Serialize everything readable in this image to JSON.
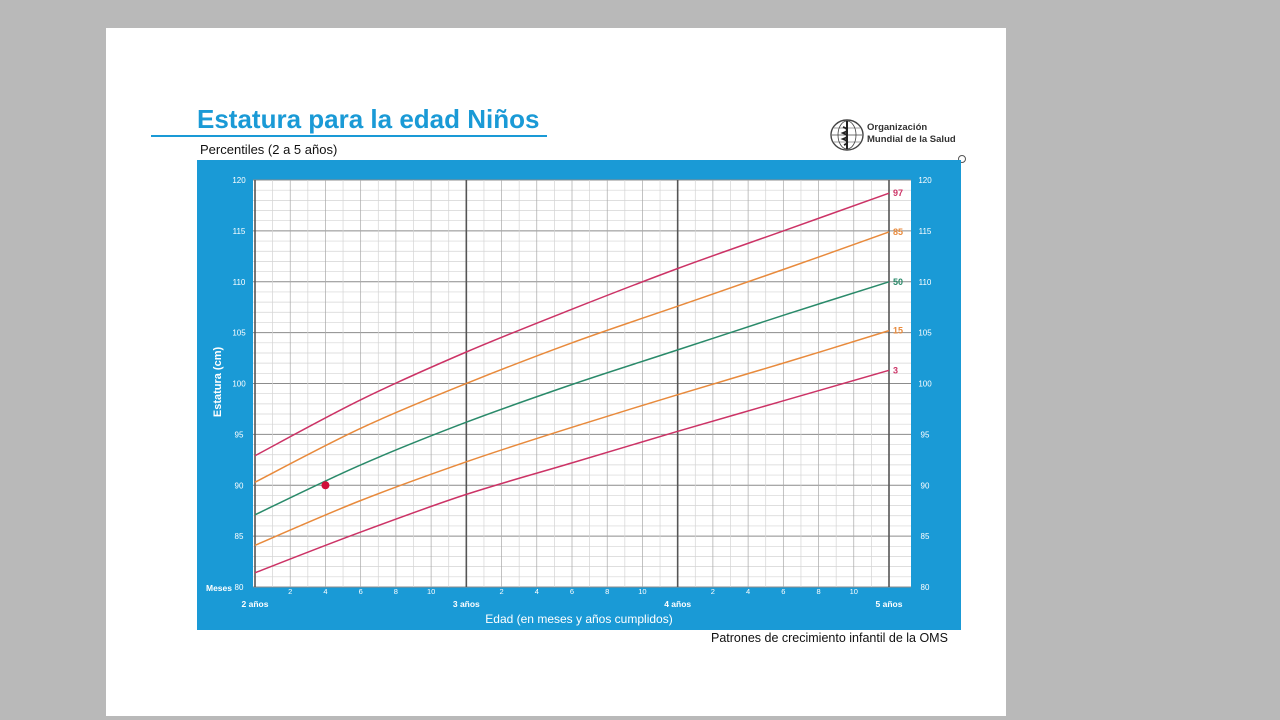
{
  "page": {
    "title": "Estatura para la edad Niños",
    "subtitle": "Percentiles (2 a 5 años)",
    "logo_line1": "Organización",
    "logo_line2": "Mundial de la Salud",
    "footnote": "Patrones de crecimiento infantil de la OMS"
  },
  "colors": {
    "brand_blue": "#1a9ad6",
    "p97": "#cc3366",
    "p85": "#e88a3c",
    "p50": "#2a8a6a",
    "p15": "#e88a3c",
    "p3": "#cc3366",
    "marker": "#d0103a"
  },
  "chart_data": {
    "type": "line",
    "title": "Estatura para la edad Niños",
    "subtitle": "Percentiles (2 a 5 años)",
    "xlabel": "Edad (en meses y años cumplidos)",
    "ylabel": "Estatura (cm)",
    "xlim": [
      24,
      60
    ],
    "ylim": [
      80,
      120
    ],
    "yticks": [
      80,
      85,
      90,
      95,
      100,
      105,
      110,
      115,
      120
    ],
    "x_month_ticks": [
      {
        "x": 26,
        "label": "2"
      },
      {
        "x": 28,
        "label": "4"
      },
      {
        "x": 30,
        "label": "6"
      },
      {
        "x": 32,
        "label": "8"
      },
      {
        "x": 34,
        "label": "10"
      },
      {
        "x": 38,
        "label": "2"
      },
      {
        "x": 40,
        "label": "4"
      },
      {
        "x": 42,
        "label": "6"
      },
      {
        "x": 44,
        "label": "8"
      },
      {
        "x": 46,
        "label": "10"
      },
      {
        "x": 50,
        "label": "2"
      },
      {
        "x": 52,
        "label": "4"
      },
      {
        "x": 54,
        "label": "6"
      },
      {
        "x": 56,
        "label": "8"
      },
      {
        "x": 58,
        "label": "10"
      }
    ],
    "x_year_ticks": [
      {
        "x": 24,
        "label": "2 años"
      },
      {
        "x": 36,
        "label": "3 años"
      },
      {
        "x": 48,
        "label": "4 años"
      },
      {
        "x": 60,
        "label": "5 años"
      }
    ],
    "x_unit_label": "Meses",
    "x": [
      24,
      30,
      36,
      42,
      48,
      54,
      60
    ],
    "series": [
      {
        "name": "97",
        "color": "#cc3366",
        "values": [
          92.9,
          98.4,
          103.1,
          107.3,
          111.3,
          115.0,
          118.7
        ]
      },
      {
        "name": "85",
        "color": "#e88a3c",
        "values": [
          90.3,
          95.6,
          100.0,
          104.0,
          107.6,
          111.2,
          114.9
        ]
      },
      {
        "name": "50",
        "color": "#2a8a6a",
        "values": [
          87.1,
          92.0,
          96.2,
          99.9,
          103.3,
          106.7,
          110.0
        ]
      },
      {
        "name": "15",
        "color": "#e88a3c",
        "values": [
          84.1,
          88.5,
          92.3,
          95.7,
          98.9,
          102.0,
          105.2
        ]
      },
      {
        "name": "3",
        "color": "#cc3366",
        "values": [
          81.4,
          85.4,
          89.1,
          92.2,
          95.3,
          98.3,
          101.3
        ]
      }
    ],
    "point": {
      "x": 28,
      "y": 90.0,
      "color": "#d0103a"
    },
    "grid": true
  }
}
